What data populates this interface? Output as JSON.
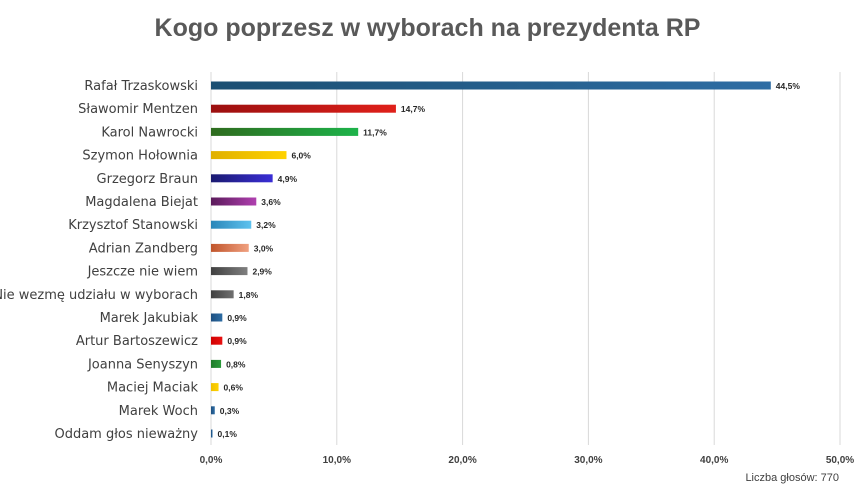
{
  "chart_data": {
    "type": "bar",
    "orientation": "horizontal",
    "title": "Kogo poprzesz w wyborach na prezydenta RP",
    "xlabel": "",
    "ylabel": "",
    "xlim": [
      0,
      50
    ],
    "x_ticks": [
      "0,0%",
      "10,0%",
      "20,0%",
      "30,0%",
      "40,0%",
      "50,0%"
    ],
    "grid": true,
    "legend": "none",
    "categories": [
      "Rafał Trzaskowski",
      "Sławomir Mentzen",
      "Karol Nawrocki",
      "Szymon Hołownia",
      "Grzegorz Braun",
      "Magdalena Biejat",
      "Krzysztof Stanowski",
      "Adrian Zandberg",
      "Jeszcze nie wiem",
      "Nie wezmę udziału w wyborach",
      "Marek Jakubiak",
      "Artur Bartoszewicz",
      "Joanna Senyszyn",
      "Maciej Maciak",
      "Marek Woch",
      "Oddam głos nieważny"
    ],
    "values": [
      44.5,
      14.7,
      11.7,
      6.0,
      4.9,
      3.6,
      3.2,
      3.0,
      2.9,
      1.8,
      0.9,
      0.9,
      0.8,
      0.6,
      0.3,
      0.1
    ],
    "value_labels": [
      "44,5%",
      "14,7%",
      "11,7%",
      "6,0%",
      "4,9%",
      "3,6%",
      "3,2%",
      "3,0%",
      "2,9%",
      "1,8%",
      "0,9%",
      "0,9%",
      "0,8%",
      "0,6%",
      "0,3%",
      "0,1%"
    ],
    "colors": [
      [
        "#1b4f72",
        "#2e6da4"
      ],
      [
        "#9b0f0f",
        "#e0201a"
      ],
      [
        "#2e6b1e",
        "#1db34a"
      ],
      [
        "#e0b000",
        "#ffd200"
      ],
      [
        "#1a1a70",
        "#3a2ed6"
      ],
      [
        "#5a1a5a",
        "#b040b0"
      ],
      [
        "#2a86b8",
        "#5ec2ef"
      ],
      [
        "#c0542a",
        "#f0a080"
      ],
      [
        "#404040",
        "#808080"
      ],
      [
        "#404040",
        "#707070"
      ],
      [
        "#1d4f80",
        "#2e6da4"
      ],
      [
        "#d00000",
        "#e81010"
      ],
      [
        "#1f7a2a",
        "#2a9a3a"
      ],
      [
        "#f0c000",
        "#ffd200"
      ],
      [
        "#1d4f80",
        "#2e6da4"
      ],
      [
        "#1d4f80",
        "#2e6da4"
      ]
    ]
  },
  "footer": "Liczba głosów: 770"
}
